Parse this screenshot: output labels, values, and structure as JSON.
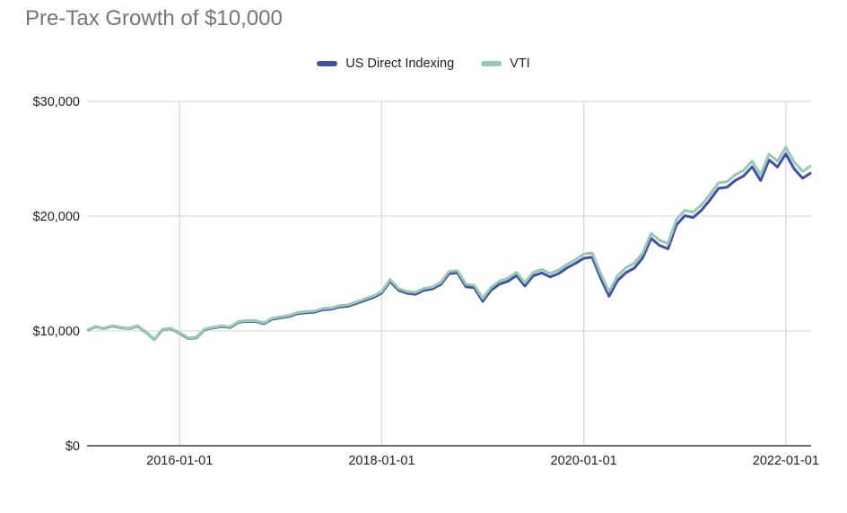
{
  "page": {
    "title": "Pre-Tax Growth of $10,000"
  },
  "colors": {
    "title_text": "#757575",
    "axis_text": "#1f1f1f",
    "gridline": "#d9d9d9",
    "baseline": "#3c3c3c",
    "background": "#ffffff"
  },
  "chart_data": {
    "type": "line",
    "title": "Pre-Tax Growth of $10,000",
    "xlabel": "",
    "ylabel": "",
    "grid": true,
    "legend_position": "top-center",
    "ylim": [
      0,
      30000
    ],
    "y_ticks": [
      {
        "label": "$0",
        "value": 0
      },
      {
        "label": "$10,000",
        "value": 10000
      },
      {
        "label": "$20,000",
        "value": 20000
      },
      {
        "label": "$30,000",
        "value": 30000
      }
    ],
    "x_ticks": [
      {
        "label": "2016-01-01",
        "index": 11
      },
      {
        "label": "2018-01-01",
        "index": 35
      },
      {
        "label": "2020-01-01",
        "index": 59
      },
      {
        "label": "2022-01-01",
        "index": 83
      }
    ],
    "x": [
      "2015-02-01",
      "2015-03-01",
      "2015-04-01",
      "2015-05-01",
      "2015-06-01",
      "2015-07-01",
      "2015-08-01",
      "2015-09-01",
      "2015-10-01",
      "2015-11-01",
      "2015-12-01",
      "2016-01-01",
      "2016-02-01",
      "2016-03-01",
      "2016-04-01",
      "2016-05-01",
      "2016-06-01",
      "2016-07-01",
      "2016-08-01",
      "2016-09-01",
      "2016-10-01",
      "2016-11-01",
      "2016-12-01",
      "2017-01-01",
      "2017-02-01",
      "2017-03-01",
      "2017-04-01",
      "2017-05-01",
      "2017-06-01",
      "2017-07-01",
      "2017-08-01",
      "2017-09-01",
      "2017-10-01",
      "2017-11-01",
      "2017-12-01",
      "2018-01-01",
      "2018-02-01",
      "2018-03-01",
      "2018-04-01",
      "2018-05-01",
      "2018-06-01",
      "2018-07-01",
      "2018-08-01",
      "2018-09-01",
      "2018-10-01",
      "2018-11-01",
      "2018-12-01",
      "2019-01-01",
      "2019-02-01",
      "2019-03-01",
      "2019-04-01",
      "2019-05-01",
      "2019-06-01",
      "2019-07-01",
      "2019-08-01",
      "2019-09-01",
      "2019-10-01",
      "2019-11-01",
      "2019-12-01",
      "2020-01-01",
      "2020-02-01",
      "2020-03-01",
      "2020-04-01",
      "2020-05-01",
      "2020-06-01",
      "2020-07-01",
      "2020-08-01",
      "2020-09-01",
      "2020-10-01",
      "2020-11-01",
      "2020-12-01",
      "2021-01-01",
      "2021-02-01",
      "2021-03-01",
      "2021-04-01",
      "2021-05-01",
      "2021-06-01",
      "2021-07-01",
      "2021-08-01",
      "2021-09-01",
      "2021-10-01",
      "2021-11-01",
      "2021-12-01",
      "2022-01-01",
      "2022-02-01",
      "2022-03-01",
      "2022-04-01"
    ],
    "series": [
      {
        "name": "US Direct Indexing",
        "color": "#3f51a5",
        "values": [
          10040,
          10370,
          10210,
          10425,
          10285,
          10205,
          10420,
          9890,
          9250,
          10145,
          10195,
          9800,
          9355,
          9405,
          10130,
          10255,
          10385,
          10300,
          10765,
          10835,
          10830,
          10630,
          11025,
          11140,
          11265,
          11510,
          11585,
          11630,
          11845,
          11890,
          12095,
          12150,
          12395,
          12660,
          12915,
          13300,
          14330,
          13545,
          13280,
          13195,
          13530,
          13655,
          14040,
          14990,
          15065,
          13855,
          13765,
          12580,
          13555,
          14080,
          14325,
          14820,
          13915,
          14810,
          15055,
          14700,
          14995,
          15490,
          15885,
          16330,
          16425,
          14620,
          13020,
          14380,
          15075,
          15470,
          16365,
          18060,
          17455,
          17150,
          19245,
          20040,
          19885,
          20530,
          21425,
          22420,
          22515,
          23110,
          23505,
          24300,
          23095,
          24890,
          24285,
          25420,
          24110,
          23300,
          23790
        ]
      },
      {
        "name": "VTI",
        "color": "#97c8b4",
        "values": [
          10060,
          10390,
          10230,
          10450,
          10310,
          10230,
          10450,
          9920,
          9280,
          10180,
          10230,
          9840,
          9400,
          9450,
          10180,
          10310,
          10440,
          10360,
          10830,
          10900,
          10900,
          10700,
          11100,
          11220,
          11350,
          11600,
          11680,
          11730,
          11950,
          12000,
          12210,
          12270,
          12520,
          12790,
          13050,
          13440,
          14480,
          13700,
          13440,
          13360,
          13700,
          13830,
          14220,
          15180,
          15260,
          14060,
          13980,
          12840,
          13820,
          14350,
          14600,
          15100,
          14200,
          15100,
          15350,
          15000,
          15300,
          15800,
          16200,
          16700,
          16800,
          15000,
          13440,
          14800,
          15500,
          15900,
          16800,
          18500,
          17900,
          17600,
          19700,
          20500,
          20350,
          21000,
          21900,
          22900,
          23000,
          23600,
          24000,
          24800,
          23600,
          25400,
          24800,
          26000,
          24700,
          23900,
          24400
        ]
      }
    ]
  }
}
